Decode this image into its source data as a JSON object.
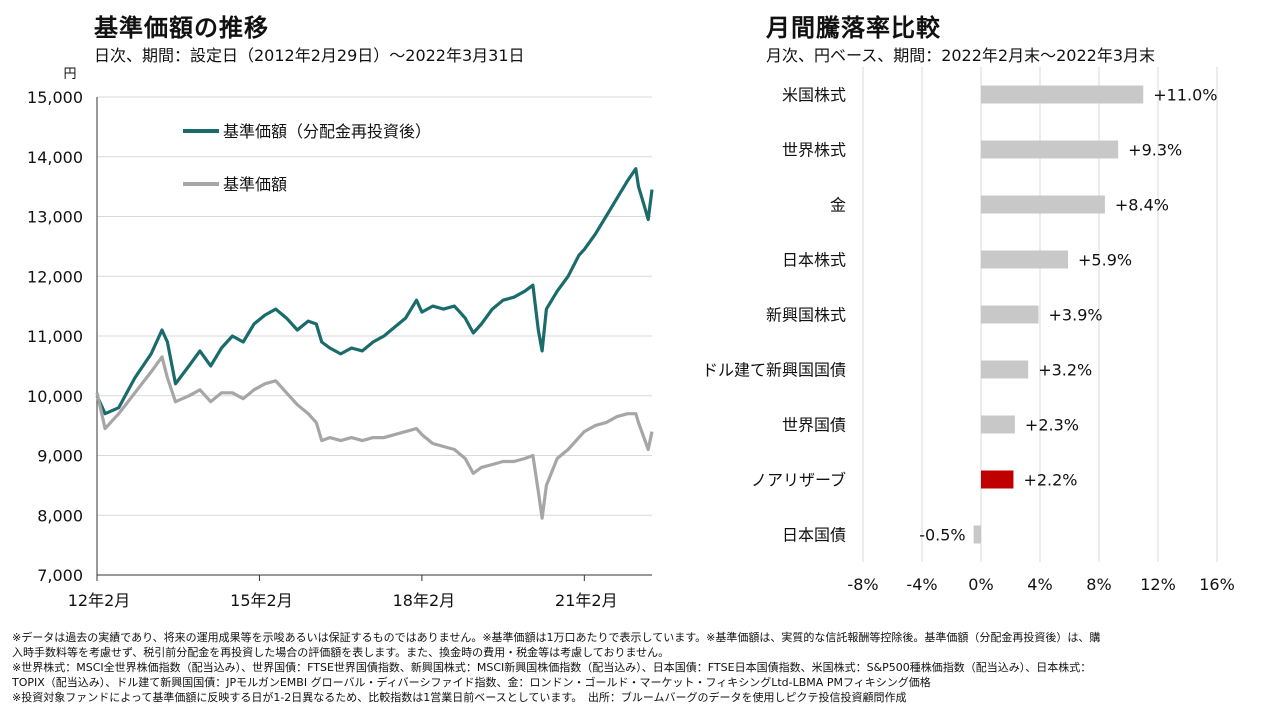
{
  "line_chart": {
    "title": "基準価額の推移",
    "subtitle": "日次、期間：設定日（2012年2月29日）～2022年3月31日"
  },
  "bar_chart": {
    "title": "月間騰落率比較",
    "subtitle": "月次、円ベース、期間：2022年2月末～2022年3月末"
  },
  "colors": {
    "reinvest": "#1a6b6b",
    "nav": "#a6a6a6",
    "bar": "#c8c8c8",
    "highlight": "#c00000"
  },
  "chart_data": [
    {
      "type": "line",
      "ylabel": "円",
      "ylim": [
        7000,
        15000
      ],
      "yticks": [
        7000,
        8000,
        9000,
        10000,
        11000,
        12000,
        13000,
        14000,
        15000
      ],
      "ytick_labels": [
        "7,000",
        "8,000",
        "9,000",
        "10,000",
        "11,000",
        "12,000",
        "13,000",
        "14,000",
        "15,000"
      ],
      "xlim": [
        2012.0,
        2022.25
      ],
      "xticks": [
        2012.0,
        2015.0,
        2018.0,
        2021.0
      ],
      "xtick_labels": [
        "12年2月",
        "15年2月",
        "18年2月",
        "21年2月"
      ],
      "grid": true,
      "legend": "top-left",
      "series": [
        {
          "name": "基準価額（分配金再投資後）",
          "color": "#1a6b6b",
          "points": [
            [
              2012.0,
              10000
            ],
            [
              2012.15,
              9700
            ],
            [
              2012.4,
              9800
            ],
            [
              2012.7,
              10300
            ],
            [
              2013.0,
              10700
            ],
            [
              2013.2,
              11100
            ],
            [
              2013.3,
              10900
            ],
            [
              2013.45,
              10200
            ],
            [
              2013.7,
              10500
            ],
            [
              2013.9,
              10750
            ],
            [
              2014.1,
              10500
            ],
            [
              2014.3,
              10800
            ],
            [
              2014.5,
              11000
            ],
            [
              2014.7,
              10900
            ],
            [
              2014.9,
              11200
            ],
            [
              2015.1,
              11350
            ],
            [
              2015.3,
              11450
            ],
            [
              2015.5,
              11300
            ],
            [
              2015.7,
              11100
            ],
            [
              2015.9,
              11250
            ],
            [
              2016.05,
              11200
            ],
            [
              2016.15,
              10900
            ],
            [
              2016.3,
              10800
            ],
            [
              2016.5,
              10700
            ],
            [
              2016.7,
              10800
            ],
            [
              2016.9,
              10750
            ],
            [
              2017.1,
              10900
            ],
            [
              2017.3,
              11000
            ],
            [
              2017.5,
              11150
            ],
            [
              2017.7,
              11300
            ],
            [
              2017.9,
              11600
            ],
            [
              2018.0,
              11400
            ],
            [
              2018.2,
              11500
            ],
            [
              2018.4,
              11450
            ],
            [
              2018.6,
              11500
            ],
            [
              2018.8,
              11300
            ],
            [
              2018.95,
              11050
            ],
            [
              2019.1,
              11200
            ],
            [
              2019.3,
              11450
            ],
            [
              2019.5,
              11600
            ],
            [
              2019.7,
              11650
            ],
            [
              2019.9,
              11750
            ],
            [
              2020.05,
              11850
            ],
            [
              2020.15,
              11100
            ],
            [
              2020.22,
              10750
            ],
            [
              2020.3,
              11450
            ],
            [
              2020.5,
              11750
            ],
            [
              2020.7,
              12000
            ],
            [
              2020.9,
              12350
            ],
            [
              2021.0,
              12450
            ],
            [
              2021.2,
              12700
            ],
            [
              2021.4,
              13000
            ],
            [
              2021.6,
              13300
            ],
            [
              2021.8,
              13600
            ],
            [
              2021.95,
              13800
            ],
            [
              2022.0,
              13500
            ],
            [
              2022.1,
              13200
            ],
            [
              2022.18,
              12950
            ],
            [
              2022.25,
              13450
            ]
          ]
        },
        {
          "name": "基準価額",
          "color": "#a6a6a6",
          "points": [
            [
              2012.0,
              10050
            ],
            [
              2012.15,
              9450
            ],
            [
              2012.4,
              9700
            ],
            [
              2012.7,
              10050
            ],
            [
              2013.0,
              10400
            ],
            [
              2013.2,
              10650
            ],
            [
              2013.3,
              10300
            ],
            [
              2013.45,
              9900
            ],
            [
              2013.7,
              10000
            ],
            [
              2013.9,
              10100
            ],
            [
              2014.1,
              9900
            ],
            [
              2014.3,
              10050
            ],
            [
              2014.5,
              10050
            ],
            [
              2014.7,
              9950
            ],
            [
              2014.9,
              10100
            ],
            [
              2015.1,
              10200
            ],
            [
              2015.3,
              10250
            ],
            [
              2015.5,
              10050
            ],
            [
              2015.7,
              9850
            ],
            [
              2015.9,
              9700
            ],
            [
              2016.05,
              9550
            ],
            [
              2016.15,
              9250
            ],
            [
              2016.3,
              9300
            ],
            [
              2016.5,
              9250
            ],
            [
              2016.7,
              9300
            ],
            [
              2016.9,
              9250
            ],
            [
              2017.1,
              9300
            ],
            [
              2017.3,
              9300
            ],
            [
              2017.5,
              9350
            ],
            [
              2017.7,
              9400
            ],
            [
              2017.9,
              9450
            ],
            [
              2018.0,
              9350
            ],
            [
              2018.2,
              9200
            ],
            [
              2018.4,
              9150
            ],
            [
              2018.6,
              9100
            ],
            [
              2018.8,
              8950
            ],
            [
              2018.95,
              8700
            ],
            [
              2019.1,
              8800
            ],
            [
              2019.3,
              8850
            ],
            [
              2019.5,
              8900
            ],
            [
              2019.7,
              8900
            ],
            [
              2019.9,
              8950
            ],
            [
              2020.05,
              9000
            ],
            [
              2020.15,
              8400
            ],
            [
              2020.22,
              7950
            ],
            [
              2020.3,
              8500
            ],
            [
              2020.5,
              8950
            ],
            [
              2020.7,
              9100
            ],
            [
              2020.9,
              9300
            ],
            [
              2021.0,
              9400
            ],
            [
              2021.2,
              9500
            ],
            [
              2021.4,
              9550
            ],
            [
              2021.6,
              9650
            ],
            [
              2021.8,
              9700
            ],
            [
              2021.95,
              9700
            ],
            [
              2022.0,
              9550
            ],
            [
              2022.1,
              9300
            ],
            [
              2022.18,
              9100
            ],
            [
              2022.25,
              9400
            ]
          ]
        }
      ]
    },
    {
      "type": "bar",
      "orientation": "horizontal",
      "categories": [
        "米国株式",
        "世界株式",
        "金",
        "日本株式",
        "新興国株式",
        "ドル建て新興国国債",
        "世界国債",
        "ノアリザーブ",
        "日本国債"
      ],
      "values": [
        11.0,
        9.3,
        8.4,
        5.9,
        3.9,
        3.2,
        2.3,
        2.2,
        -0.5
      ],
      "labels": [
        "+11.0%",
        "+9.3%",
        "+8.4%",
        "+5.9%",
        "+3.9%",
        "+3.2%",
        "+2.3%",
        "+2.2%",
        "-0.5%"
      ],
      "highlight": "ノアリザーブ",
      "xlim": [
        -8,
        16
      ],
      "xticks": [
        -8,
        -4,
        0,
        4,
        8,
        12,
        16
      ],
      "xtick_labels": [
        "-8%",
        "-4%",
        "0%",
        "4%",
        "8%",
        "12%",
        "16%"
      ],
      "grid": true
    }
  ],
  "notes": [
    "※データは過去の実績であり、将来の運用成果等を示唆あるいは保証するものではありません。※基準価額は1万口あたりで表示しています。※基準価額は、実質的な信託報酬等控除後。基準価額（分配金再投資後）は、購",
    "入時手数料等を考慮せず、税引前分配金を再投資した場合の評価額を表します。また、換金時の費用・税金等は考慮しておりません。",
    "※世界株式：MSCI全世界株価指数（配当込み）、世界国債：FTSE世界国債指数、新興国株式：MSCI新興国株価指数（配当込み）、日本国債：FTSE日本国債指数、米国株式：S&P500種株価指数（配当込み）、日本株式：",
    "TOPIX（配当込み）、ドル建て新興国国債：JPモルガンEMBI グローバル・ディバーシファイド指数、金：ロンドン・ゴールド・マーケット・フィキシングLtd-LBMA PMフィキシング価格",
    "※投資対象ファンドによって基準価額に反映する日が1-2日異なるため、比較指数は1営業日前ベースとしています。　出所：ブルームバーグのデータを使用しピクテ投信投資顧問作成"
  ]
}
